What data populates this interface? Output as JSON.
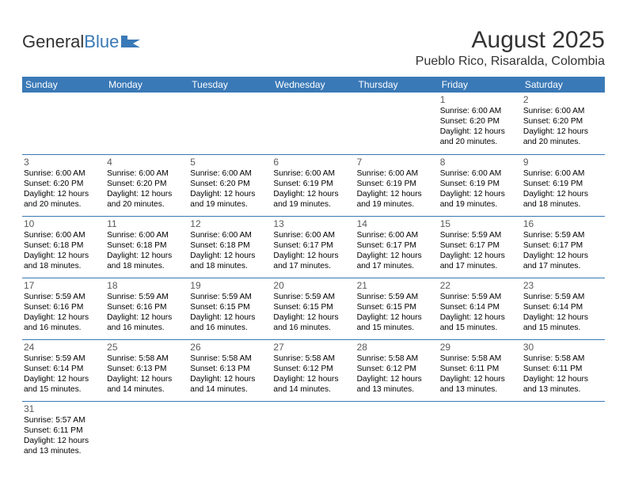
{
  "logo": {
    "text1": "General",
    "text2": "Blue"
  },
  "title": "August 2025",
  "location": "Pueblo Rico, Risaralda, Colombia",
  "colors": {
    "header_bg": "#3a79b7",
    "header_text": "#ffffff",
    "border": "#3a79b7",
    "body_text": "#000000",
    "title_text": "#333333",
    "logo_accent": "#3a79b7"
  },
  "weekdays": [
    "Sunday",
    "Monday",
    "Tuesday",
    "Wednesday",
    "Thursday",
    "Friday",
    "Saturday"
  ],
  "weeks": [
    [
      null,
      null,
      null,
      null,
      null,
      {
        "d": "1",
        "sr": "6:00 AM",
        "ss": "6:20 PM",
        "dl": "12 hours and 20 minutes."
      },
      {
        "d": "2",
        "sr": "6:00 AM",
        "ss": "6:20 PM",
        "dl": "12 hours and 20 minutes."
      }
    ],
    [
      {
        "d": "3",
        "sr": "6:00 AM",
        "ss": "6:20 PM",
        "dl": "12 hours and 20 minutes."
      },
      {
        "d": "4",
        "sr": "6:00 AM",
        "ss": "6:20 PM",
        "dl": "12 hours and 20 minutes."
      },
      {
        "d": "5",
        "sr": "6:00 AM",
        "ss": "6:20 PM",
        "dl": "12 hours and 19 minutes."
      },
      {
        "d": "6",
        "sr": "6:00 AM",
        "ss": "6:19 PM",
        "dl": "12 hours and 19 minutes."
      },
      {
        "d": "7",
        "sr": "6:00 AM",
        "ss": "6:19 PM",
        "dl": "12 hours and 19 minutes."
      },
      {
        "d": "8",
        "sr": "6:00 AM",
        "ss": "6:19 PM",
        "dl": "12 hours and 19 minutes."
      },
      {
        "d": "9",
        "sr": "6:00 AM",
        "ss": "6:19 PM",
        "dl": "12 hours and 18 minutes."
      }
    ],
    [
      {
        "d": "10",
        "sr": "6:00 AM",
        "ss": "6:18 PM",
        "dl": "12 hours and 18 minutes."
      },
      {
        "d": "11",
        "sr": "6:00 AM",
        "ss": "6:18 PM",
        "dl": "12 hours and 18 minutes."
      },
      {
        "d": "12",
        "sr": "6:00 AM",
        "ss": "6:18 PM",
        "dl": "12 hours and 18 minutes."
      },
      {
        "d": "13",
        "sr": "6:00 AM",
        "ss": "6:17 PM",
        "dl": "12 hours and 17 minutes."
      },
      {
        "d": "14",
        "sr": "6:00 AM",
        "ss": "6:17 PM",
        "dl": "12 hours and 17 minutes."
      },
      {
        "d": "15",
        "sr": "5:59 AM",
        "ss": "6:17 PM",
        "dl": "12 hours and 17 minutes."
      },
      {
        "d": "16",
        "sr": "5:59 AM",
        "ss": "6:17 PM",
        "dl": "12 hours and 17 minutes."
      }
    ],
    [
      {
        "d": "17",
        "sr": "5:59 AM",
        "ss": "6:16 PM",
        "dl": "12 hours and 16 minutes."
      },
      {
        "d": "18",
        "sr": "5:59 AM",
        "ss": "6:16 PM",
        "dl": "12 hours and 16 minutes."
      },
      {
        "d": "19",
        "sr": "5:59 AM",
        "ss": "6:15 PM",
        "dl": "12 hours and 16 minutes."
      },
      {
        "d": "20",
        "sr": "5:59 AM",
        "ss": "6:15 PM",
        "dl": "12 hours and 16 minutes."
      },
      {
        "d": "21",
        "sr": "5:59 AM",
        "ss": "6:15 PM",
        "dl": "12 hours and 15 minutes."
      },
      {
        "d": "22",
        "sr": "5:59 AM",
        "ss": "6:14 PM",
        "dl": "12 hours and 15 minutes."
      },
      {
        "d": "23",
        "sr": "5:59 AM",
        "ss": "6:14 PM",
        "dl": "12 hours and 15 minutes."
      }
    ],
    [
      {
        "d": "24",
        "sr": "5:59 AM",
        "ss": "6:14 PM",
        "dl": "12 hours and 15 minutes."
      },
      {
        "d": "25",
        "sr": "5:58 AM",
        "ss": "6:13 PM",
        "dl": "12 hours and 14 minutes."
      },
      {
        "d": "26",
        "sr": "5:58 AM",
        "ss": "6:13 PM",
        "dl": "12 hours and 14 minutes."
      },
      {
        "d": "27",
        "sr": "5:58 AM",
        "ss": "6:12 PM",
        "dl": "12 hours and 14 minutes."
      },
      {
        "d": "28",
        "sr": "5:58 AM",
        "ss": "6:12 PM",
        "dl": "12 hours and 13 minutes."
      },
      {
        "d": "29",
        "sr": "5:58 AM",
        "ss": "6:11 PM",
        "dl": "12 hours and 13 minutes."
      },
      {
        "d": "30",
        "sr": "5:58 AM",
        "ss": "6:11 PM",
        "dl": "12 hours and 13 minutes."
      }
    ],
    [
      {
        "d": "31",
        "sr": "5:57 AM",
        "ss": "6:11 PM",
        "dl": "12 hours and 13 minutes."
      },
      null,
      null,
      null,
      null,
      null,
      null
    ]
  ],
  "labels": {
    "sunrise": "Sunrise: ",
    "sunset": "Sunset: ",
    "daylight": "Daylight: "
  }
}
